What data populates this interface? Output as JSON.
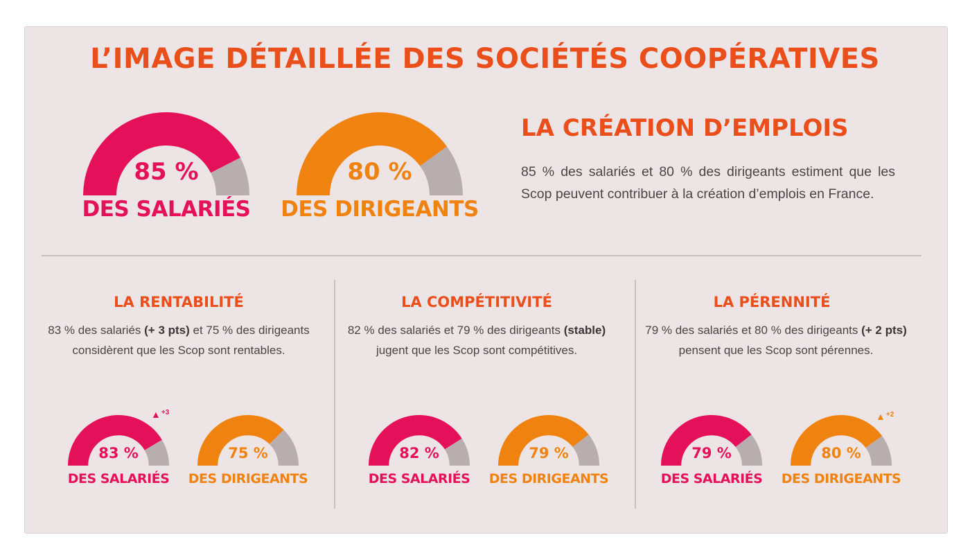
{
  "title": "L’IMAGE DÉTAILLÉE DES SOCIÉTÉS COOPÉRATIVES",
  "colors": {
    "pink": "#e5105a",
    "orange": "#f08210",
    "grey": "#b8aeaf",
    "accent": "#e94e1b"
  },
  "intro": {
    "title": "LA CRÉATION D’EMPLOIS",
    "text": "85 % des salariés et 80 % des dirigeants estiment que les Scop peuvent contribuer à la création d’emplois en France.",
    "gauges": [
      {
        "value_label": "85 %",
        "label": "DES SALARIÉS",
        "value": 85,
        "color": "pink"
      },
      {
        "value_label": "80 %",
        "label": "DES DIRIGEANTS",
        "value": 80,
        "color": "orange"
      }
    ]
  },
  "sections": [
    {
      "title": "LA RENTABILITÉ",
      "text_parts": [
        "83 % des salariés ",
        "(+ 3 pts)",
        " et 75 % des dirigeants considèrent que les Scop sont rentables."
      ],
      "gauges": [
        {
          "value_label": "83 %",
          "label": "DES SALARIÉS",
          "value": 83,
          "color": "pink",
          "delta": "+3"
        },
        {
          "value_label": "75 %",
          "label": "DES DIRIGEANTS",
          "value": 75,
          "color": "orange"
        }
      ]
    },
    {
      "title": "LA COMPÉTITIVITÉ",
      "text_parts": [
        "82 % des salariés et 79 % des dirigeants ",
        "(stable)",
        " jugent que les Scop sont compétitives."
      ],
      "gauges": [
        {
          "value_label": "82 %",
          "label": "DES SALARIÉS",
          "value": 82,
          "color": "pink"
        },
        {
          "value_label": "79 %",
          "label": "DES DIRIGEANTS",
          "value": 79,
          "color": "orange"
        }
      ]
    },
    {
      "title": "LA PÉRENNITÉ",
      "text_parts": [
        "79 % des salariés et 80 % des dirigeants ",
        "(+ 2 pts)",
        " pensent que les Scop sont pérennes."
      ],
      "gauges": [
        {
          "value_label": "79 %",
          "label": "DES SALARIÉS",
          "value": 79,
          "color": "pink"
        },
        {
          "value_label": "80 %",
          "label": "DES DIRIGEANTS",
          "value": 80,
          "color": "orange",
          "delta": "+2"
        }
      ]
    }
  ],
  "chart_data": [
    {
      "type": "gauge",
      "title": "LA CRÉATION D’EMPLOIS",
      "categories": [
        "DES SALARIÉS",
        "DES DIRIGEANTS"
      ],
      "values": [
        85,
        80
      ],
      "unit": "%",
      "ylim": [
        0,
        100
      ]
    },
    {
      "type": "gauge",
      "title": "LA RENTABILITÉ",
      "categories": [
        "DES SALARIÉS",
        "DES DIRIGEANTS"
      ],
      "values": [
        83,
        75
      ],
      "unit": "%",
      "ylim": [
        0,
        100
      ],
      "deltas": [
        "+3",
        null
      ]
    },
    {
      "type": "gauge",
      "title": "LA COMPÉTITIVITÉ",
      "categories": [
        "DES SALARIÉS",
        "DES DIRIGEANTS"
      ],
      "values": [
        82,
        79
      ],
      "unit": "%",
      "ylim": [
        0,
        100
      ]
    },
    {
      "type": "gauge",
      "title": "LA PÉRENNITÉ",
      "categories": [
        "DES SALARIÉS",
        "DES DIRIGEANTS"
      ],
      "values": [
        79,
        80
      ],
      "unit": "%",
      "ylim": [
        0,
        100
      ],
      "deltas": [
        null,
        "+2"
      ]
    }
  ]
}
